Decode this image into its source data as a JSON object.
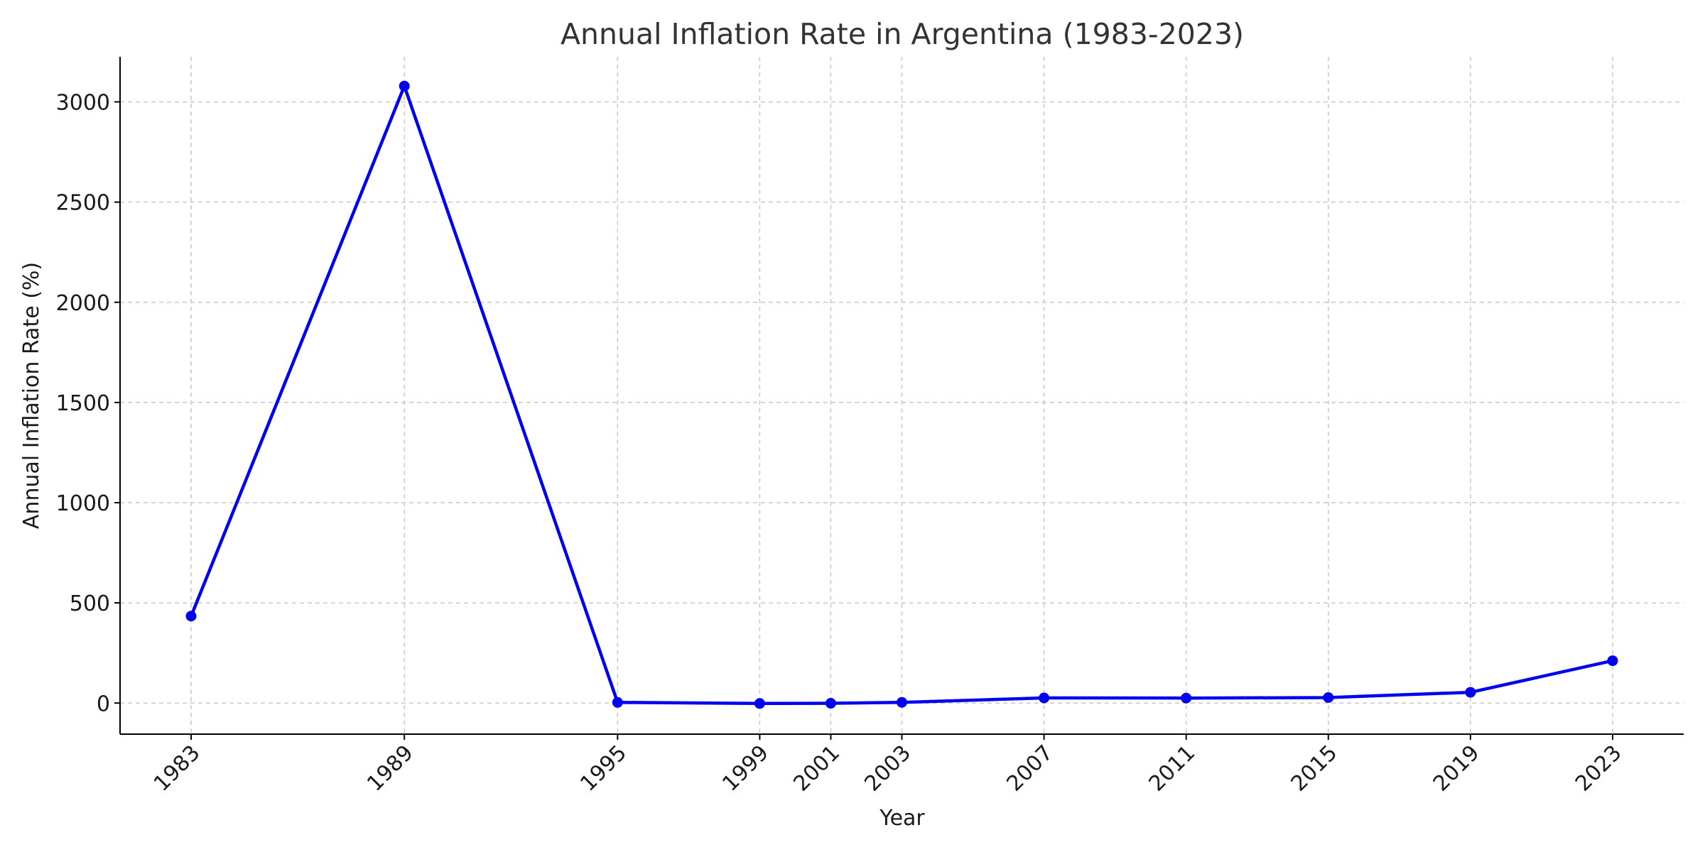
{
  "chart_data": {
    "type": "line",
    "title": "Annual Inflation Rate in Argentina (1983-2023)",
    "xlabel": "Year",
    "ylabel": "Annual Inflation Rate (%)",
    "x": [
      1983,
      1989,
      1995,
      1999,
      2001,
      2003,
      2007,
      2011,
      2015,
      2019,
      2023
    ],
    "series": [
      {
        "values": [
          434,
          3079,
          3.4,
          -1.8,
          -1.1,
          3.7,
          25.7,
          25.0,
          27.5,
          53.8,
          211.4
        ],
        "color": "#0000ee",
        "marker": "circle"
      }
    ],
    "xticks": [
      "1983",
      "1989",
      "1995",
      "1999",
      "2001",
      "2003",
      "2007",
      "2011",
      "2015",
      "2019",
      "2023"
    ],
    "yticks": [
      0,
      500,
      1000,
      1500,
      2000,
      2500,
      3000
    ],
    "xlim": [
      1981,
      2025
    ],
    "ylim": [
      -155,
      3225
    ],
    "grid": true,
    "tick_rotation": -45,
    "axis_color": "#000000",
    "grid_color": "#c8c8c8"
  }
}
